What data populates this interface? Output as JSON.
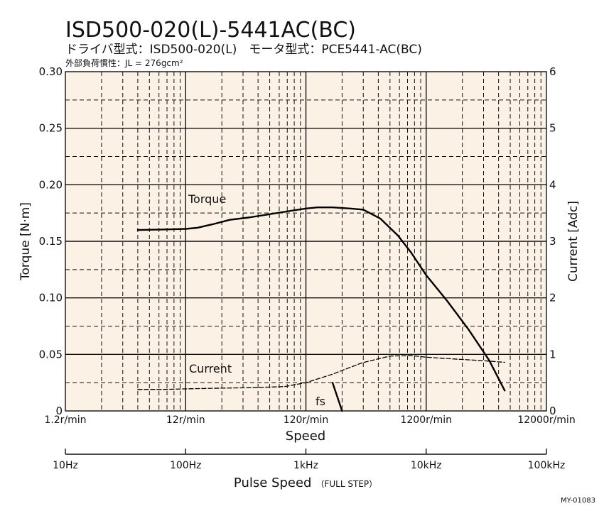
{
  "header": {
    "title": "ISD500-020(L)-5441AC(BC)",
    "subtitle": "ドライバ型式：ISD500-020(L)　モータ型式：PCE5441-AC(BC)",
    "inertia": "外部負荷慣性：JL = 276gcm²"
  },
  "colors": {
    "plot_bg": "#fbf1e4",
    "grid": "#111111",
    "line": "#000000"
  },
  "chart_data": {
    "type": "line",
    "x_scale": "log",
    "xlabel": "Speed",
    "xlim": [
      1.2,
      12000
    ],
    "x_ticks": [
      {
        "value": 1.2,
        "label": "1.2r/min"
      },
      {
        "value": 12,
        "label": "12r/min"
      },
      {
        "value": 120,
        "label": "120r/min"
      },
      {
        "value": 1200,
        "label": "1200r/min"
      },
      {
        "value": 12000,
        "label": "12000r/min"
      }
    ],
    "ylabel_left": "Torque [N·m]",
    "ylim_left": [
      0,
      0.3
    ],
    "y_ticks_left": [
      "0",
      "0.05",
      "0.10",
      "0.15",
      "0.20",
      "0.25",
      "0.30"
    ],
    "ylabel_right": "Current [Adc]",
    "ylim_right": [
      0,
      6
    ],
    "y_ticks_right": [
      "0",
      "1",
      "2",
      "3",
      "4",
      "5",
      "6"
    ],
    "grid": true,
    "series": [
      {
        "name": "Torque",
        "axis": "left",
        "style": "solid",
        "x": [
          4.8,
          8,
          12,
          15,
          20,
          28,
          40,
          60,
          90,
          120,
          150,
          200,
          280,
          360,
          500,
          700,
          900,
          1200,
          1800,
          2700,
          4000,
          5400
        ],
        "y": [
          0.16,
          0.1605,
          0.161,
          0.162,
          0.165,
          0.169,
          0.171,
          0.174,
          0.177,
          0.179,
          0.18,
          0.18,
          0.179,
          0.178,
          0.17,
          0.155,
          0.14,
          0.12,
          0.097,
          0.072,
          0.045,
          0.018
        ]
      },
      {
        "name": "Current",
        "axis": "right",
        "style": "dashed",
        "x": [
          4.8,
          8,
          12,
          20,
          40,
          80,
          120,
          200,
          350,
          600,
          900,
          1200,
          2000,
          3500,
          5400
        ],
        "y": [
          0.38,
          0.38,
          0.39,
          0.4,
          0.41,
          0.43,
          0.5,
          0.65,
          0.85,
          0.97,
          0.98,
          0.95,
          0.92,
          0.89,
          0.86
        ]
      },
      {
        "name": "fs",
        "axis": "right",
        "style": "solid",
        "x": [
          200,
          240
        ],
        "y": [
          0.5,
          0.0
        ]
      }
    ],
    "pulse_axis": {
      "label": "Pulse Speed",
      "note": "（FULL STEP）",
      "ticks": [
        "10Hz",
        "100Hz",
        "1kHz",
        "10kHz",
        "100kHz"
      ]
    }
  },
  "footer_code": "MY-01083"
}
